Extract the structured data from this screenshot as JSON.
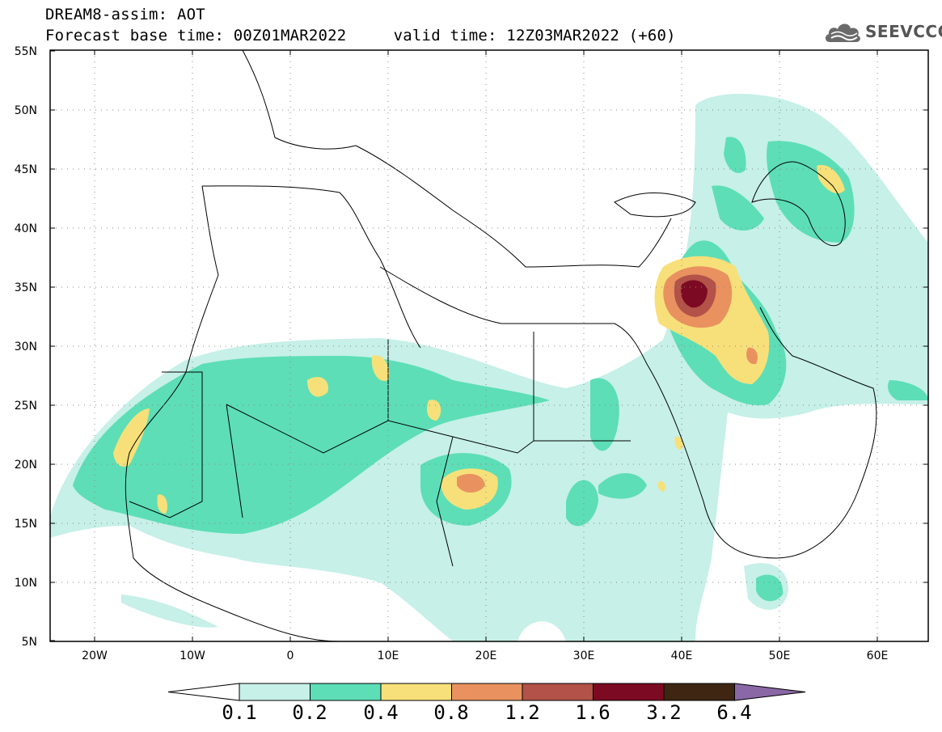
{
  "header": {
    "line1": "DREAM8-assim: AOT",
    "line2": "Forecast base time: 00Z01MAR2022     valid time: 12Z03MAR2022 (+60)"
  },
  "logo": {
    "text": "SEEVCCC",
    "icon": "cloud-icon"
  },
  "axes": {
    "lat_labels": [
      "55N",
      "50N",
      "45N",
      "40N",
      "35N",
      "30N",
      "25N",
      "20N",
      "15N",
      "10N",
      "5N"
    ],
    "lon_labels": [
      "20W",
      "10W",
      "0",
      "10E",
      "20E",
      "30E",
      "40E",
      "50E",
      "60E"
    ]
  },
  "colorbar": {
    "labels": [
      "0.1",
      "0.2",
      "0.4",
      "0.8",
      "1.2",
      "1.6",
      "3.2",
      "6.4"
    ],
    "colors": [
      "#ffffff",
      "#c6f0e8",
      "#5ddeb6",
      "#f7e07a",
      "#e99260",
      "#b25248",
      "#7c0a22",
      "#3e2613",
      "#8a68a6"
    ]
  }
}
